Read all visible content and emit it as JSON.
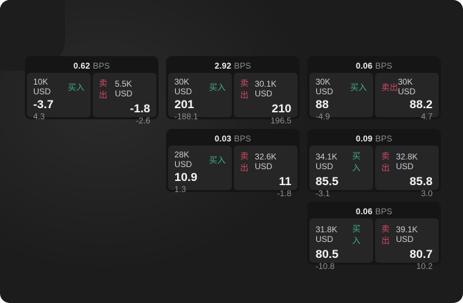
{
  "labels": {
    "bps": "BPS",
    "buy": "买入",
    "sell": "卖出"
  },
  "colors": {
    "buy": "#3fae83",
    "sell": "#cf4a64"
  },
  "cards": [
    {
      "row": 1,
      "col": 1,
      "bps": "0.62",
      "buy_size": "10K USD",
      "buy_price": "-3.7",
      "buy_change": "4.3",
      "sell_size": "5.5K USD",
      "sell_price": "-1.8",
      "sell_change": "-2.6"
    },
    {
      "row": 1,
      "col": 2,
      "bps": "2.92",
      "buy_size": "30K USD",
      "buy_price": "201",
      "buy_change": "-188.1",
      "sell_size": "30.1K USD",
      "sell_price": "210",
      "sell_change": "196.5"
    },
    {
      "row": 1,
      "col": 3,
      "bps": "0.06",
      "buy_size": "30K USD",
      "buy_price": "88",
      "buy_change": "-4.9",
      "sell_size": "30K USD",
      "sell_price": "88.2",
      "sell_change": "4.7"
    },
    {
      "row": 2,
      "col": 2,
      "bps": "0.03",
      "buy_size": "28K USD",
      "buy_price": "10.9",
      "buy_change": "1.3",
      "sell_size": "32.6K USD",
      "sell_price": "11",
      "sell_change": "-1.8"
    },
    {
      "row": 2,
      "col": 3,
      "bps": "0.09",
      "buy_size": "34.1K USD",
      "buy_price": "85.5",
      "buy_change": "-3.1",
      "sell_size": "32.8K USD",
      "sell_price": "85.8",
      "sell_change": "3.0"
    },
    {
      "row": 3,
      "col": 3,
      "bps": "0.06",
      "buy_size": "31.8K USD",
      "buy_price": "80.5",
      "buy_change": "-10.8",
      "sell_size": "39.1K USD",
      "sell_price": "80.7",
      "sell_change": "10.2"
    }
  ]
}
